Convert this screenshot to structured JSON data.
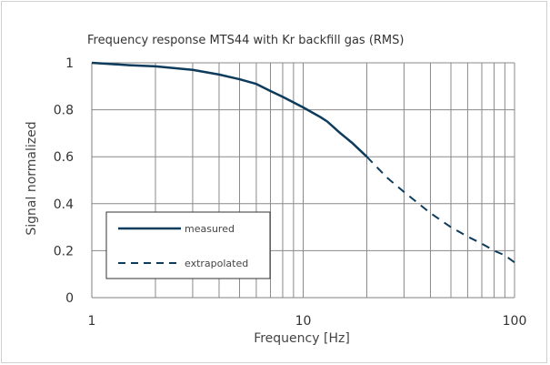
{
  "chart_data": {
    "type": "line",
    "title": "Frequency response MTS44 with Kr backfill gas (RMS)",
    "xlabel": "Frequency [Hz]",
    "ylabel": "Signal normalized",
    "xscale": "log",
    "xlim": [
      1,
      100
    ],
    "ylim": [
      0,
      1
    ],
    "x_ticks": [
      "1",
      "10",
      "100"
    ],
    "y_ticks": [
      "0",
      "0.2",
      "0.4",
      "0.6",
      "0.8",
      "1"
    ],
    "grid": true,
    "legend_position": "lower-left",
    "colors": {
      "line": "#0d3b5c",
      "grid": "#8a8a8a",
      "axis": "#808080"
    },
    "series": [
      {
        "name": "measured",
        "style": "solid",
        "x": [
          1,
          1.5,
          2,
          3,
          4,
          5,
          6,
          7,
          8,
          10,
          12,
          13,
          15,
          17,
          20
        ],
        "y": [
          1.0,
          0.99,
          0.985,
          0.97,
          0.95,
          0.93,
          0.91,
          0.88,
          0.855,
          0.81,
          0.77,
          0.75,
          0.7,
          0.66,
          0.6
        ]
      },
      {
        "name": "extrapolated",
        "style": "dashed",
        "x": [
          20,
          25,
          30,
          40,
          50,
          60,
          70,
          80,
          90,
          100
        ],
        "y": [
          0.6,
          0.51,
          0.45,
          0.36,
          0.3,
          0.26,
          0.23,
          0.2,
          0.18,
          0.15
        ]
      }
    ]
  }
}
